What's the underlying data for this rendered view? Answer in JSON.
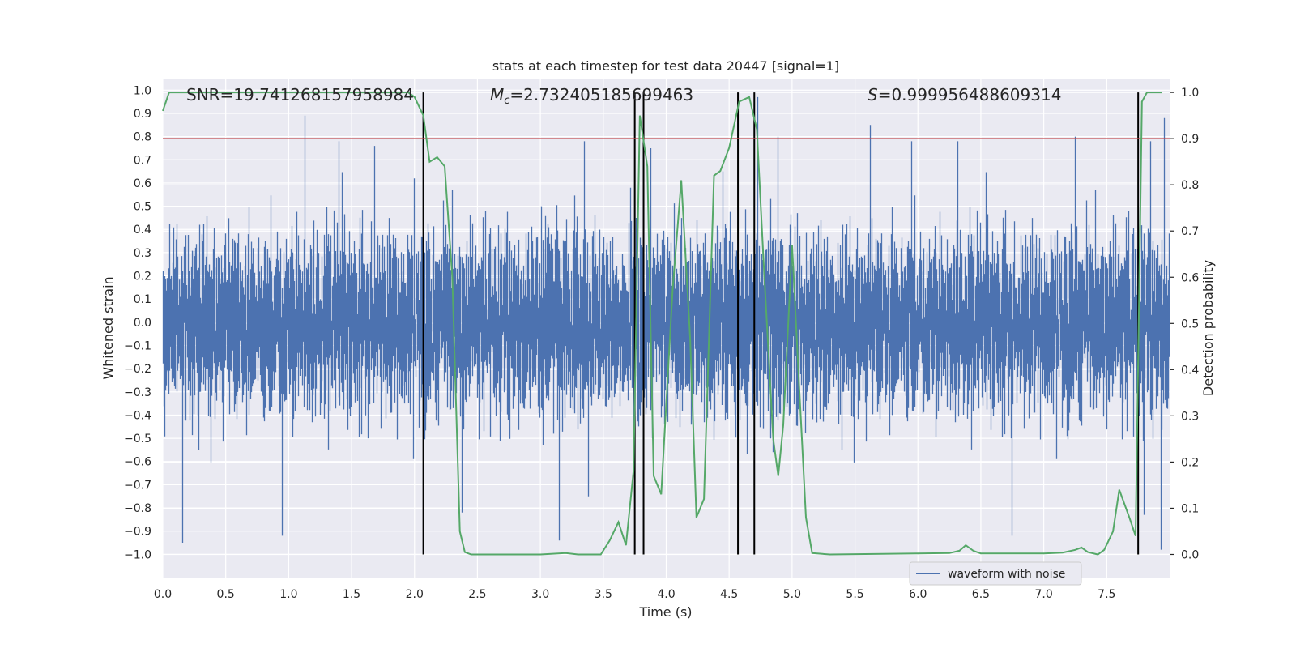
{
  "chart_data": {
    "type": "line",
    "title": "stats at each timestep for test data 20447 [signal=1]",
    "xlabel": "Time (s)",
    "ylabel_left": "Whitened strain",
    "ylabel_right": "Detection probability",
    "xlim": [
      0.0,
      8.0
    ],
    "ylim_left": [
      -1.1,
      1.05
    ],
    "ylim_right": [
      -0.05,
      1.03
    ],
    "x_ticks": [
      0.0,
      0.5,
      1.0,
      1.5,
      2.0,
      2.5,
      3.0,
      3.5,
      4.0,
      4.5,
      5.0,
      5.5,
      6.0,
      6.5,
      7.0,
      7.5
    ],
    "x_tick_labels": [
      "0.0",
      "0.5",
      "1.0",
      "1.5",
      "2.0",
      "2.5",
      "3.0",
      "3.5",
      "4.0",
      "4.5",
      "5.0",
      "5.5",
      "6.0",
      "6.5",
      "7.0",
      "7.5"
    ],
    "y_left_ticks": [
      -1.0,
      -0.9,
      -0.8,
      -0.7,
      -0.6,
      -0.5,
      -0.4,
      -0.3,
      -0.2,
      -0.1,
      0.0,
      0.1,
      0.2,
      0.3,
      0.4,
      0.5,
      0.6,
      0.7,
      0.8,
      0.9,
      1.0
    ],
    "y_left_tick_labels": [
      "−1.0",
      "−0.9",
      "−0.8",
      "−0.7",
      "−0.6",
      "−0.5",
      "−0.4",
      "−0.3",
      "−0.2",
      "−0.1",
      "0.0",
      "0.1",
      "0.2",
      "0.3",
      "0.4",
      "0.5",
      "0.6",
      "0.7",
      "0.8",
      "0.9",
      "1.0"
    ],
    "y_right_ticks": [
      0.0,
      0.1,
      0.2,
      0.3,
      0.4,
      0.5,
      0.6,
      0.7,
      0.8,
      0.9,
      1.0
    ],
    "y_right_tick_labels": [
      "0.0",
      "0.1",
      "0.2",
      "0.3",
      "0.4",
      "0.5",
      "0.6",
      "0.7",
      "0.8",
      "0.9",
      "1.0"
    ],
    "annotations": {
      "snr": "SNR=19.741268157958984",
      "mc_symbol": "M",
      "mc_sub": "c",
      "mc_value": "=2.732405185699463",
      "s_symbol": "S",
      "s_value": "=0.999956488609314"
    },
    "threshold_line": {
      "value_right": 0.9,
      "color": "#c44e52"
    },
    "vertical_lines_x": [
      2.07,
      3.75,
      3.82,
      4.57,
      4.7,
      7.75
    ],
    "waveform": {
      "name": "waveform with noise",
      "color": "#4c72b0",
      "sample_rate_hz": 1024,
      "duration_s": 8.0,
      "typical_envelope": 0.45,
      "spikes": [
        [
          0.16,
          -0.95
        ],
        [
          0.95,
          -0.92
        ],
        [
          1.13,
          0.89
        ],
        [
          1.4,
          0.78
        ],
        [
          1.68,
          0.76
        ],
        [
          2.0,
          0.62
        ],
        [
          2.38,
          -0.82
        ],
        [
          3.15,
          -0.94
        ],
        [
          3.35,
          0.78
        ],
        [
          3.38,
          -0.75
        ],
        [
          3.72,
          0.58
        ],
        [
          3.88,
          0.75
        ],
        [
          4.45,
          0.65
        ],
        [
          4.73,
          0.97
        ],
        [
          4.85,
          -0.56
        ],
        [
          4.89,
          0.8
        ],
        [
          5.62,
          0.85
        ],
        [
          5.95,
          0.78
        ],
        [
          6.32,
          0.78
        ],
        [
          6.75,
          -0.92
        ],
        [
          7.25,
          0.8
        ],
        [
          7.8,
          -0.83
        ],
        [
          7.85,
          0.78
        ],
        [
          7.93,
          -0.98
        ],
        [
          7.96,
          0.88
        ]
      ]
    },
    "detection_probability": {
      "name": "detection probability",
      "color": "#55a868",
      "points": [
        [
          0.0,
          0.96
        ],
        [
          0.05,
          1.0
        ],
        [
          0.5,
          1.0
        ],
        [
          1.0,
          1.0
        ],
        [
          1.5,
          1.0
        ],
        [
          1.95,
          1.0
        ],
        [
          2.0,
          0.99
        ],
        [
          2.07,
          0.95
        ],
        [
          2.12,
          0.85
        ],
        [
          2.18,
          0.86
        ],
        [
          2.24,
          0.84
        ],
        [
          2.3,
          0.6
        ],
        [
          2.36,
          0.05
        ],
        [
          2.4,
          0.005
        ],
        [
          2.45,
          0.0
        ],
        [
          3.0,
          0.0
        ],
        [
          3.2,
          0.003
        ],
        [
          3.3,
          0.0
        ],
        [
          3.48,
          0.0
        ],
        [
          3.55,
          0.03
        ],
        [
          3.62,
          0.07
        ],
        [
          3.68,
          0.02
        ],
        [
          3.74,
          0.18
        ],
        [
          3.79,
          0.95
        ],
        [
          3.85,
          0.84
        ],
        [
          3.9,
          0.17
        ],
        [
          3.96,
          0.13
        ],
        [
          4.05,
          0.57
        ],
        [
          4.12,
          0.81
        ],
        [
          4.19,
          0.47
        ],
        [
          4.24,
          0.08
        ],
        [
          4.3,
          0.12
        ],
        [
          4.38,
          0.82
        ],
        [
          4.43,
          0.83
        ],
        [
          4.5,
          0.88
        ],
        [
          4.58,
          0.98
        ],
        [
          4.66,
          0.99
        ],
        [
          4.72,
          0.92
        ],
        [
          4.78,
          0.6
        ],
        [
          4.85,
          0.25
        ],
        [
          4.89,
          0.17
        ],
        [
          4.93,
          0.28
        ],
        [
          5.0,
          0.67
        ],
        [
          5.05,
          0.4
        ],
        [
          5.11,
          0.08
        ],
        [
          5.16,
          0.003
        ],
        [
          5.3,
          0.0
        ],
        [
          6.0,
          0.002
        ],
        [
          6.25,
          0.003
        ],
        [
          6.33,
          0.008
        ],
        [
          6.38,
          0.02
        ],
        [
          6.44,
          0.008
        ],
        [
          6.5,
          0.002
        ],
        [
          7.0,
          0.002
        ],
        [
          7.15,
          0.004
        ],
        [
          7.25,
          0.01
        ],
        [
          7.3,
          0.015
        ],
        [
          7.35,
          0.005
        ],
        [
          7.43,
          0.0
        ],
        [
          7.48,
          0.01
        ],
        [
          7.55,
          0.05
        ],
        [
          7.6,
          0.14
        ],
        [
          7.68,
          0.08
        ],
        [
          7.73,
          0.04
        ],
        [
          7.78,
          0.98
        ],
        [
          7.82,
          1.0
        ],
        [
          7.88,
          1.0
        ],
        [
          7.94,
          1.0
        ]
      ]
    },
    "legend": {
      "label": "waveform with noise",
      "placement": "lower-right"
    }
  }
}
